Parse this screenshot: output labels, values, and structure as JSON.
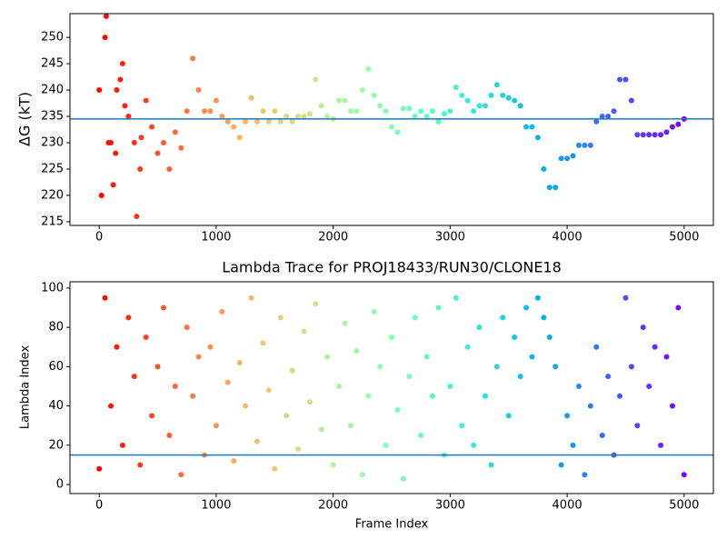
{
  "chart_data": [
    {
      "type": "scatter",
      "ylabel": "ΔG (kT)",
      "colormap": "rainbow_r",
      "hline": 234.5,
      "hline_color": "#1f77b4",
      "xlim": [
        -250,
        5250
      ],
      "xticks": [
        0,
        1000,
        2000,
        3000,
        4000,
        5000
      ],
      "ylim": [
        214.3,
        254.5
      ],
      "yticks": [
        215,
        220,
        225,
        230,
        235,
        240,
        245,
        250
      ],
      "x": [
        0,
        20,
        50,
        60,
        80,
        100,
        120,
        140,
        150,
        180,
        200,
        220,
        250,
        300,
        320,
        350,
        360,
        400,
        450,
        500,
        550,
        600,
        650,
        700,
        750,
        800,
        850,
        900,
        950,
        1000,
        1050,
        1100,
        1150,
        1200,
        1250,
        1300,
        1350,
        1400,
        1450,
        1500,
        1550,
        1600,
        1650,
        1700,
        1750,
        1800,
        1850,
        1900,
        1950,
        2000,
        2050,
        2100,
        2150,
        2200,
        2250,
        2300,
        2350,
        2400,
        2450,
        2500,
        2550,
        2600,
        2650,
        2700,
        2750,
        2800,
        2850,
        2900,
        2950,
        3000,
        3050,
        3100,
        3150,
        3200,
        3250,
        3300,
        3350,
        3400,
        3450,
        3500,
        3550,
        3600,
        3650,
        3700,
        3750,
        3800,
        3850,
        3900,
        3950,
        4000,
        4050,
        4100,
        4150,
        4200,
        4250,
        4300,
        4350,
        4400,
        4450,
        4500,
        4550,
        4600,
        4650,
        4700,
        4750,
        4800,
        4850,
        4900,
        4950,
        5000
      ],
      "values": [
        240,
        220,
        250,
        254,
        230,
        230,
        222,
        228,
        240,
        242,
        245,
        237,
        235,
        230,
        216,
        225,
        231,
        238,
        233,
        228,
        230,
        225,
        232,
        229,
        236,
        246,
        240,
        236,
        236,
        238,
        235,
        234,
        233,
        231,
        234,
        238.5,
        234,
        236,
        234,
        236,
        234,
        235,
        234,
        235,
        235,
        235.5,
        242,
        237,
        235,
        234.5,
        238,
        238,
        236,
        236,
        240,
        244,
        239,
        237,
        236,
        233,
        232,
        236.5,
        236.5,
        235,
        236,
        235,
        236,
        234,
        235.5,
        236,
        240.5,
        239,
        238,
        236,
        237,
        237,
        239,
        241,
        239,
        238.5,
        238,
        237,
        233,
        233,
        231,
        225,
        221.5,
        221.5,
        227,
        227,
        227.5,
        229.5,
        229.5,
        229.5,
        234,
        235,
        235,
        236,
        242,
        242,
        238,
        231.5,
        231.5,
        231.5,
        231.5,
        231.5,
        232,
        233,
        233.5,
        234.5
      ]
    },
    {
      "type": "scatter",
      "title": "Lambda Trace for PROJ18433/RUN30/CLONE18",
      "xlabel": "Frame Index",
      "ylabel": "Lambda Index",
      "colormap": "rainbow_r",
      "hline": 15,
      "hline_color": "#1f77b4",
      "xlim": [
        -250,
        5250
      ],
      "xticks": [
        0,
        1000,
        2000,
        3000,
        4000,
        5000
      ],
      "ylim": [
        -4.6,
        103.2
      ],
      "yticks": [
        0,
        20,
        40,
        60,
        80,
        100
      ],
      "x": [
        0,
        50,
        100,
        150,
        200,
        250,
        300,
        350,
        400,
        450,
        500,
        550,
        600,
        650,
        700,
        750,
        800,
        850,
        900,
        950,
        1000,
        1050,
        1100,
        1150,
        1200,
        1250,
        1300,
        1350,
        1400,
        1450,
        1500,
        1550,
        1600,
        1650,
        1700,
        1750,
        1800,
        1850,
        1900,
        1950,
        2000,
        2050,
        2100,
        2150,
        2200,
        2250,
        2300,
        2350,
        2400,
        2450,
        2500,
        2550,
        2600,
        2650,
        2700,
        2750,
        2800,
        2850,
        2900,
        2950,
        3000,
        3050,
        3100,
        3150,
        3200,
        3250,
        3300,
        3350,
        3400,
        3450,
        3500,
        3550,
        3600,
        3650,
        3700,
        3750,
        3800,
        3850,
        3900,
        3950,
        4000,
        4050,
        4100,
        4150,
        4200,
        4250,
        4300,
        4350,
        4400,
        4450,
        4500,
        4550,
        4600,
        4650,
        4700,
        4750,
        4800,
        4850,
        4900,
        4950,
        5000
      ],
      "values": [
        8,
        95,
        40,
        70,
        20,
        85,
        55,
        10,
        75,
        35,
        60,
        90,
        25,
        50,
        5,
        80,
        45,
        65,
        15,
        70,
        30,
        88,
        52,
        12,
        62,
        40,
        95,
        22,
        72,
        48,
        8,
        85,
        35,
        58,
        18,
        78,
        42,
        92,
        28,
        65,
        10,
        50,
        82,
        30,
        68,
        5,
        45,
        88,
        60,
        20,
        75,
        38,
        3,
        55,
        85,
        25,
        65,
        45,
        90,
        15,
        50,
        95,
        30,
        70,
        20,
        80,
        45,
        10,
        60,
        85,
        35,
        75,
        55,
        90,
        65,
        95,
        85,
        75,
        60,
        10,
        35,
        20,
        50,
        5,
        40,
        70,
        25,
        55,
        15,
        45,
        95,
        60,
        30,
        80,
        50,
        70,
        20,
        65,
        40,
        90,
        5
      ]
    }
  ]
}
